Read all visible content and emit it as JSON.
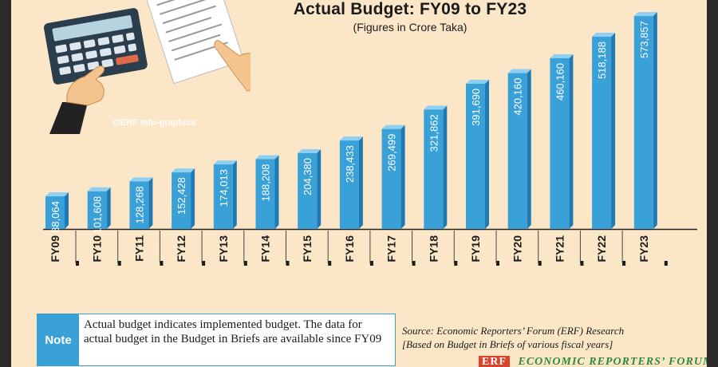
{
  "chart_data": {
    "type": "bar",
    "title": "Actual Budget: FY09 to FY23",
    "subtitle": "(Figures in Crore Taka)",
    "categories": [
      "FY09",
      "FY10",
      "FY11",
      "FY12",
      "FY13",
      "FY14",
      "FY15",
      "FY16",
      "FY17",
      "FY18",
      "FY19",
      "FY20",
      "FY21",
      "FY22",
      "FY23"
    ],
    "values": [
      88064,
      101608,
      128268,
      152428,
      174013,
      188208,
      204380,
      238433,
      269499,
      321862,
      391690,
      420160,
      460160,
      518188,
      573857
    ],
    "value_labels": [
      "88,064",
      "101,608",
      "128,268",
      "152,428",
      "174,013",
      "188,208",
      "204,380",
      "238,433",
      "269,499",
      "321,862",
      "391,690",
      "420,160",
      "460,160",
      "518,188",
      "573,857"
    ],
    "ylim": [
      0,
      600000
    ],
    "grid": false,
    "bar_color": "#3aa0d8"
  },
  "watermark": "@ERF Info-graphics",
  "note": {
    "tag": "Note",
    "text": "Actual budget indicates implemented budget. The data for actual budget in the Budget in Briefs are available since FY09"
  },
  "source": {
    "line1": "Source: Economic Reporters’ Forum (ERF) Research",
    "line2": "[Based on Budget in Briefs of various fiscal years]"
  },
  "brand": {
    "logo": "ERF",
    "name": "ECONOMIC REPORTERS’ FORUM"
  },
  "icons": [
    "calculator-icon",
    "paper-hand-icon",
    "pointing-hand-icon"
  ]
}
